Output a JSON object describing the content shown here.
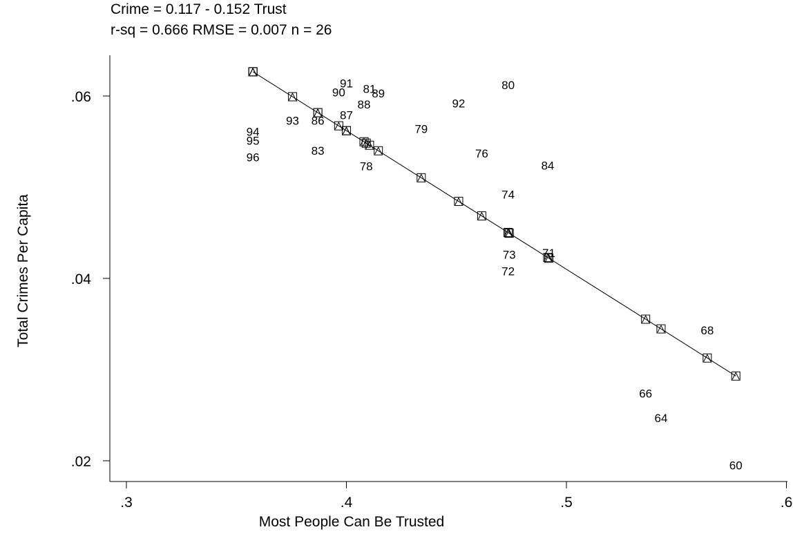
{
  "chart_data": {
    "type": "scatter",
    "title": "Crime = 0.117 - 0.152 Trust",
    "subtitle": "r-sq = 0.666  RMSE = 0.007  n = 26",
    "xlabel": "Most People Can Be Trusted",
    "ylabel": "Total Crimes Per Capita",
    "xlim": [
      0.3,
      0.6
    ],
    "ylim": [
      0.02,
      0.065
    ],
    "xticks": [
      {
        "v": 0.3,
        "label": ".3"
      },
      {
        "v": 0.4,
        "label": ".4"
      },
      {
        "v": 0.5,
        "label": ".5"
      },
      {
        "v": 0.6,
        "label": ".6"
      }
    ],
    "yticks": [
      {
        "v": 0.02,
        "label": ".02"
      },
      {
        "v": 0.04,
        "label": ".04"
      },
      {
        "v": 0.06,
        "label": ".06"
      }
    ],
    "grid": false,
    "regression": {
      "intercept": 0.117,
      "slope": -0.152
    },
    "points": [
      {
        "label": "60",
        "x": 0.577,
        "y": 0.0195
      },
      {
        "label": "64",
        "x": 0.543,
        "y": 0.0247
      },
      {
        "label": "66",
        "x": 0.536,
        "y": 0.0274
      },
      {
        "label": "68",
        "x": 0.564,
        "y": 0.0343
      },
      {
        "label": "71",
        "x": 0.492,
        "y": 0.0428
      },
      {
        "label": "72",
        "x": 0.4735,
        "y": 0.0408
      },
      {
        "label": "73",
        "x": 0.474,
        "y": 0.0426
      },
      {
        "label": "74",
        "x": 0.4735,
        "y": 0.0492
      },
      {
        "label": "76",
        "x": 0.4615,
        "y": 0.0537
      },
      {
        "label": "78",
        "x": 0.409,
        "y": 0.0523
      },
      {
        "label": "79",
        "x": 0.434,
        "y": 0.0564
      },
      {
        "label": "80",
        "x": 0.4735,
        "y": 0.0612
      },
      {
        "label": "81",
        "x": 0.4105,
        "y": 0.0608
      },
      {
        "label": "83",
        "x": 0.387,
        "y": 0.054
      },
      {
        "label": "84",
        "x": 0.4915,
        "y": 0.0524
      },
      {
        "label": "86",
        "x": 0.387,
        "y": 0.0573
      },
      {
        "label": "87",
        "x": 0.4,
        "y": 0.0579
      },
      {
        "label": "88",
        "x": 0.408,
        "y": 0.0591
      },
      {
        "label": "89",
        "x": 0.4145,
        "y": 0.0603
      },
      {
        "label": "90",
        "x": 0.3965,
        "y": 0.0604
      },
      {
        "label": "91",
        "x": 0.4,
        "y": 0.0614
      },
      {
        "label": "92",
        "x": 0.451,
        "y": 0.0592
      },
      {
        "label": "93",
        "x": 0.3755,
        "y": 0.0573
      },
      {
        "label": "94",
        "x": 0.3575,
        "y": 0.0561
      },
      {
        "label": "95",
        "x": 0.3575,
        "y": 0.0551
      },
      {
        "label": "96",
        "x": 0.3575,
        "y": 0.0533
      }
    ]
  }
}
